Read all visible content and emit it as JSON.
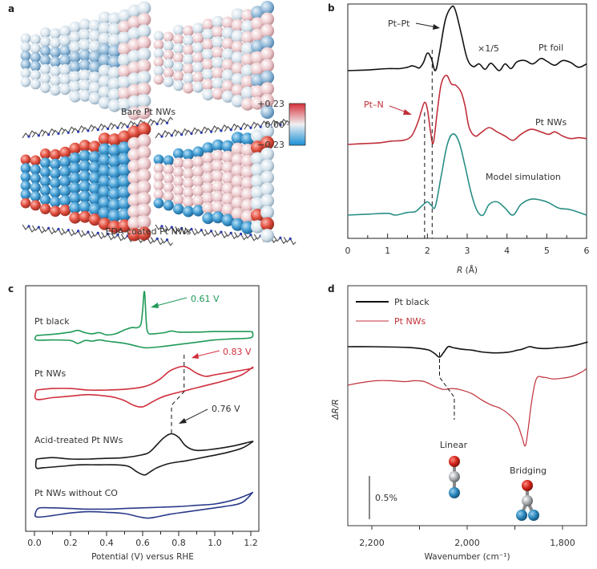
{
  "chart_data": [
    {
      "panel": "a",
      "type": "other",
      "captions": [
        "Bare Pt NWs",
        "EDA-coated Pt NWs"
      ],
      "colorbar": {
        "ticks": [
          "+0.23",
          "0.00",
          "−0.23"
        ],
        "colors": [
          "#d7303a",
          "#f3f3f3",
          "#1a8fd6"
        ]
      }
    },
    {
      "panel": "b",
      "type": "line",
      "xlabel_italic": "R",
      "xlabel_unit": " (Å)",
      "xlim": [
        0,
        6
      ],
      "xticks": [
        0,
        1,
        2,
        3,
        4,
        5,
        6
      ],
      "xtick_labels": [
        "0",
        "1",
        "2",
        "3",
        "4",
        "5",
        "6"
      ],
      "yticks": "none",
      "series": [
        {
          "name": "Pt foil",
          "color": "#111111",
          "scale_note": "×1/5",
          "x": [
            0,
            0.5,
            1,
            1.3,
            1.5,
            1.6,
            1.7,
            1.8,
            1.9,
            2.0,
            2.1,
            2.2,
            2.3,
            2.45,
            2.6,
            2.7,
            2.85,
            3.0,
            3.15,
            3.3,
            3.45,
            3.6,
            3.8,
            3.95,
            4.1,
            4.25,
            4.45,
            4.65,
            4.85,
            5.0,
            5.2,
            5.4,
            5.6,
            5.8,
            6.0
          ],
          "y": [
            0.0,
            0.01,
            0.03,
            0.03,
            0.05,
            0.07,
            0.06,
            0.04,
            0.12,
            0.26,
            0.18,
            0.0,
            0.25,
            0.75,
            0.94,
            0.9,
            0.55,
            0.18,
            0.06,
            0.1,
            0.02,
            0.11,
            0.0,
            0.1,
            0.03,
            0.13,
            0.15,
            0.1,
            0.18,
            0.14,
            0.08,
            0.15,
            0.12,
            0.05,
            0.1
          ]
        },
        {
          "name": "Pt NWs",
          "color": "#c0303a",
          "x": [
            0,
            0.4,
            0.8,
            1.1,
            1.4,
            1.6,
            1.75,
            1.85,
            1.93,
            2.0,
            2.08,
            2.15,
            2.25,
            2.35,
            2.48,
            2.6,
            2.72,
            2.85,
            2.95,
            3.05,
            3.2,
            3.35,
            3.55,
            3.75,
            3.95,
            4.15,
            4.35,
            4.6,
            4.85,
            5.05,
            5.2,
            5.4,
            5.6,
            5.8,
            6.0
          ],
          "y": [
            0.0,
            0.01,
            0.02,
            0.04,
            0.05,
            0.1,
            0.25,
            0.4,
            0.5,
            0.42,
            0.15,
            0.02,
            0.4,
            0.72,
            0.82,
            0.72,
            0.7,
            0.62,
            0.45,
            0.2,
            0.1,
            0.14,
            0.2,
            0.15,
            0.1,
            0.05,
            0.12,
            0.18,
            0.15,
            0.12,
            0.15,
            0.1,
            0.07,
            0.08,
            0.07
          ]
        },
        {
          "name": "Model simulation",
          "color": "#2a8f86",
          "x": [
            0,
            0.5,
            1.0,
            1.2,
            1.5,
            1.7,
            1.85,
            2.0,
            2.1,
            2.2,
            2.35,
            2.5,
            2.65,
            2.8,
            2.95,
            3.1,
            3.25,
            3.4,
            3.55,
            3.75,
            3.95,
            4.15,
            4.35,
            4.6,
            4.85,
            5.05,
            5.3,
            5.6,
            6.0
          ],
          "y": [
            0.0,
            0.01,
            0.02,
            0.0,
            0.03,
            0.04,
            0.1,
            0.15,
            0.11,
            0.1,
            0.45,
            0.8,
            0.92,
            0.82,
            0.55,
            0.25,
            0.05,
            0.0,
            0.12,
            0.15,
            0.08,
            0.0,
            0.12,
            0.18,
            0.17,
            0.14,
            0.08,
            0.06,
            0.0
          ]
        }
      ],
      "annotations": [
        {
          "text": "Pt–Pt",
          "color": "#222222",
          "target_R": 2.55
        },
        {
          "text": "Pt–N",
          "color": "#c0303a",
          "target_R": 1.75
        }
      ],
      "dashed_lines_R": [
        1.93,
        2.12
      ]
    },
    {
      "panel": "c",
      "type": "line",
      "xlabel": "Potential (V) versus RHE",
      "xlim": [
        0.0,
        1.2
      ],
      "xticks": [
        0.0,
        0.2,
        0.4,
        0.6,
        0.8,
        1.0,
        1.2
      ],
      "xtick_labels": [
        "0.0",
        "0.2",
        "0.4",
        "0.6",
        "0.8",
        "1.0",
        "1.2"
      ],
      "series": [
        {
          "name": "Pt black",
          "color": "#1f9a57",
          "peak_label": "0.61 V",
          "peak_V": 0.61,
          "anodic_x": [
            0.01,
            0.1,
            0.2,
            0.24,
            0.28,
            0.32,
            0.36,
            0.4,
            0.45,
            0.5,
            0.54,
            0.57,
            0.59,
            0.6,
            0.61,
            0.62,
            0.63,
            0.66,
            0.72,
            0.76,
            0.8,
            0.9,
            1.0,
            1.1,
            1.19,
            1.21
          ],
          "anodic_y": [
            0.0,
            0.02,
            0.06,
            0.09,
            0.05,
            0.03,
            0.05,
            0.01,
            0.03,
            0.1,
            0.14,
            0.14,
            0.2,
            0.45,
            0.78,
            0.25,
            0.05,
            0.03,
            0.05,
            0.08,
            0.06,
            0.06,
            0.07,
            0.07,
            0.07,
            0.06
          ],
          "cathodic_x": [
            1.21,
            1.2,
            1.1,
            1.0,
            0.9,
            0.8,
            0.7,
            0.62,
            0.58,
            0.5,
            0.4,
            0.36,
            0.32,
            0.28,
            0.24,
            0.2,
            0.1,
            0.01,
            0.01
          ],
          "cathodic_y": [
            0.06,
            -0.04,
            -0.06,
            -0.08,
            -0.12,
            -0.16,
            -0.2,
            -0.22,
            -0.2,
            -0.14,
            -0.1,
            -0.08,
            -0.1,
            -0.09,
            -0.14,
            -0.09,
            -0.08,
            -0.08,
            0.0
          ]
        },
        {
          "name": "Pt NWs",
          "color": "#d02f3c",
          "peak_label": "0.83 V",
          "peak_V": 0.83,
          "anodic_x": [
            0.01,
            0.1,
            0.2,
            0.3,
            0.4,
            0.5,
            0.6,
            0.65,
            0.7,
            0.75,
            0.8,
            0.83,
            0.86,
            0.9,
            0.95,
            1.0,
            1.1,
            1.2,
            1.21
          ],
          "anodic_y": [
            0.0,
            0.02,
            0.02,
            0.0,
            0.0,
            0.01,
            0.04,
            0.08,
            0.15,
            0.25,
            0.3,
            0.31,
            0.28,
            0.22,
            0.18,
            0.2,
            0.24,
            0.28,
            0.3
          ],
          "cathodic_x": [
            1.21,
            1.15,
            1.05,
            0.95,
            0.85,
            0.75,
            0.7,
            0.65,
            0.6,
            0.55,
            0.5,
            0.45,
            0.4,
            0.3,
            0.2,
            0.1,
            0.01,
            0.01
          ],
          "cathodic_y": [
            0.3,
            0.2,
            0.12,
            0.06,
            0.0,
            -0.06,
            -0.1,
            -0.16,
            -0.22,
            -0.2,
            -0.14,
            -0.1,
            -0.08,
            -0.06,
            -0.08,
            -0.1,
            -0.12,
            0.0
          ]
        },
        {
          "name": "Acid-treated Pt NWs",
          "color": "#1a1a1a",
          "peak_label": "0.76 V",
          "peak_V": 0.76,
          "anodic_x": [
            0.01,
            0.1,
            0.2,
            0.3,
            0.4,
            0.5,
            0.6,
            0.64,
            0.68,
            0.72,
            0.76,
            0.8,
            0.84,
            0.9,
            1.0,
            1.1,
            1.2,
            1.21
          ],
          "anodic_y": [
            0.0,
            0.02,
            0.0,
            0.0,
            0.01,
            0.02,
            0.06,
            0.1,
            0.2,
            0.3,
            0.35,
            0.3,
            0.18,
            0.12,
            0.14,
            0.18,
            0.24,
            0.24
          ],
          "cathodic_x": [
            1.21,
            1.15,
            1.05,
            0.95,
            0.85,
            0.75,
            0.68,
            0.64,
            0.61,
            0.57,
            0.52,
            0.45,
            0.35,
            0.25,
            0.15,
            0.05,
            0.01,
            0.01
          ],
          "cathodic_y": [
            0.24,
            0.15,
            0.08,
            0.03,
            -0.02,
            -0.06,
            -0.12,
            -0.18,
            -0.22,
            -0.18,
            -0.1,
            -0.08,
            -0.08,
            -0.08,
            -0.1,
            -0.12,
            -0.12,
            0.0
          ]
        },
        {
          "name": "Pt NWs without CO",
          "color": "#2a3a8a",
          "anodic_x": [
            0.01,
            0.03,
            0.1,
            0.2,
            0.3,
            0.4,
            0.5,
            0.6,
            0.7,
            0.8,
            0.9,
            1.0,
            1.1,
            1.18,
            1.21
          ],
          "anodic_y": [
            0.0,
            0.04,
            0.04,
            0.03,
            0.02,
            0.02,
            0.03,
            0.04,
            0.05,
            0.06,
            0.08,
            0.1,
            0.16,
            0.24,
            0.28
          ],
          "cathodic_x": [
            1.21,
            1.15,
            1.05,
            0.95,
            0.85,
            0.75,
            0.68,
            0.63,
            0.58,
            0.5,
            0.4,
            0.3,
            0.2,
            0.1,
            0.01,
            0.01
          ],
          "cathodic_y": [
            0.28,
            0.12,
            0.06,
            0.02,
            -0.02,
            -0.06,
            -0.1,
            -0.12,
            -0.1,
            -0.05,
            -0.03,
            -0.02,
            -0.04,
            -0.08,
            -0.1,
            0.0
          ]
        }
      ],
      "dashed_lines_V": [
        0.76,
        0.83
      ]
    },
    {
      "panel": "d",
      "type": "line",
      "xlabel": "Wavenumber (cm⁻¹)",
      "ylabel": "ΔR/R",
      "xlim": [
        2250,
        1745
      ],
      "xticks": [
        2200,
        2100,
        2000,
        1900,
        1800
      ],
      "xtick_labels": [
        "2,200",
        "",
        "2,000",
        "",
        "1,800"
      ],
      "legend_position": "top-left",
      "scale_bar_label": "0.5%",
      "series": [
        {
          "name": "Pt black",
          "color": "#111111",
          "x": [
            2250,
            2200,
            2150,
            2120,
            2100,
            2080,
            2068,
            2058,
            2050,
            2040,
            2030,
            2010,
            1990,
            1970,
            1950,
            1930,
            1910,
            1895,
            1885,
            1870,
            1860,
            1845,
            1830,
            1810,
            1790,
            1770,
            1750,
            1745
          ],
          "y": [
            0.0,
            0.0,
            -0.005,
            -0.01,
            -0.02,
            -0.04,
            -0.08,
            -0.12,
            -0.07,
            0.0,
            -0.01,
            -0.03,
            -0.04,
            -0.06,
            -0.07,
            -0.07,
            -0.06,
            -0.04,
            -0.03,
            0.0,
            -0.01,
            -0.02,
            -0.02,
            -0.01,
            0.0,
            0.02,
            0.05,
            0.05
          ]
        },
        {
          "name": "Pt NWs",
          "color": "#c0303a",
          "x": [
            2250,
            2220,
            2190,
            2160,
            2130,
            2110,
            2090,
            2070,
            2050,
            2030,
            2010,
            1990,
            1970,
            1950,
            1930,
            1910,
            1895,
            1885,
            1878,
            1872,
            1865,
            1855,
            1840,
            1820,
            1800,
            1780,
            1760,
            1745
          ],
          "y": [
            -0.35,
            -0.32,
            -0.3,
            -0.3,
            -0.31,
            -0.3,
            -0.31,
            -0.36,
            -0.4,
            -0.39,
            -0.41,
            -0.45,
            -0.52,
            -0.58,
            -0.62,
            -0.7,
            -0.8,
            -0.95,
            -1.05,
            -0.85,
            -0.55,
            -0.28,
            -0.26,
            -0.28,
            -0.27,
            -0.25,
            -0.2,
            -0.16
          ]
        }
      ],
      "annotations": [
        {
          "text": "Linear",
          "molecule": "linear-CO"
        },
        {
          "text": "Bridging",
          "molecule": "bridging-CO"
        }
      ],
      "dashed_marks_cm": [
        2058,
        2027
      ]
    }
  ]
}
